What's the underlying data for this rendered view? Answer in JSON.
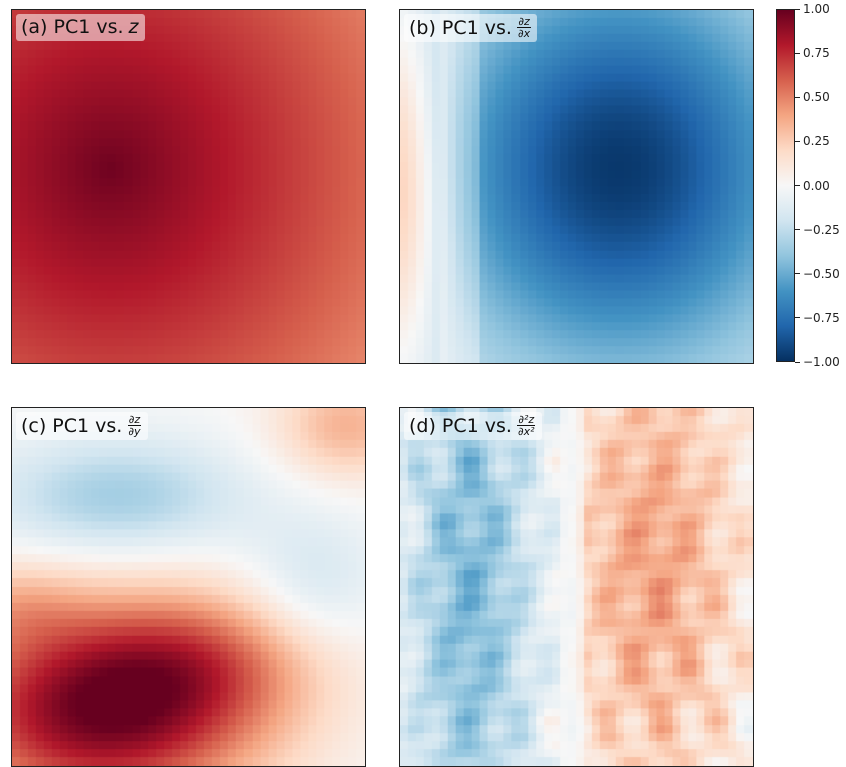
{
  "chart_data": [
    {
      "type": "heatmap",
      "panel": "a",
      "title_prefix": "(a) PC1 vs.",
      "title_math": "z",
      "description_values": "strong positive correlation, max ~0.97 near upper-left center, decreasing to ~0.45 at right edge",
      "colormap": "RdBu_r",
      "vmin": -1.0,
      "vmax": 1.0
    },
    {
      "type": "heatmap",
      "panel": "b",
      "title_prefix": "(b) PC1 vs.",
      "title_math_num": "∂z",
      "title_math_den": "∂x",
      "colormap": "RdBu_r",
      "vmin": -1.0,
      "vmax": 1.0
    },
    {
      "type": "heatmap",
      "panel": "c",
      "title_prefix": "(c) PC1 vs.",
      "title_math_num": "∂z",
      "title_math_den": "∂y",
      "colormap": "RdBu_r",
      "vmin": -1.0,
      "vmax": 1.0
    },
    {
      "type": "heatmap",
      "panel": "d",
      "title_prefix": "(d) PC1 vs.",
      "title_math_num": "∂²z",
      "title_math_den": "∂x²",
      "colormap": "RdBu_r",
      "vmin": -1.0,
      "vmax": 1.0
    }
  ],
  "colorbar": {
    "ticks": [
      "1.00",
      "0.75",
      "0.50",
      "0.25",
      "0.00",
      "−0.25",
      "−0.50",
      "−0.75",
      "−1.00"
    ],
    "values": [
      1.0,
      0.75,
      0.5,
      0.25,
      0.0,
      -0.25,
      -0.5,
      -0.75,
      -1.0
    ]
  }
}
